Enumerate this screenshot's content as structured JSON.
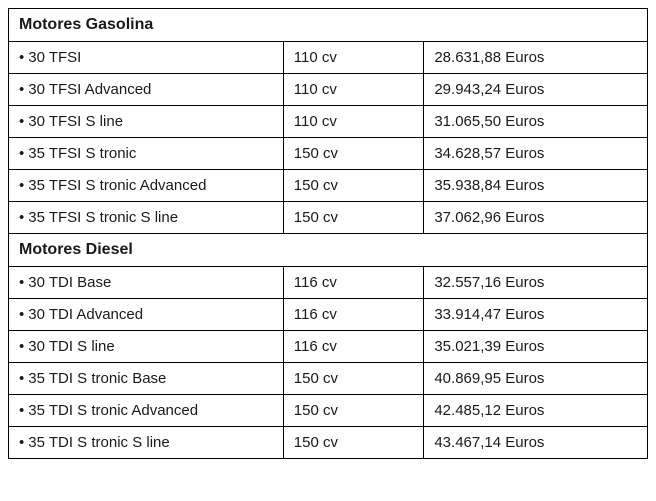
{
  "table": {
    "border_color": "#000000",
    "background_color": "#ffffff",
    "text_color": "#1a1a1a",
    "font_family": "Arial",
    "header_fontsize": 16,
    "row_fontsize": 15,
    "columns": [
      "model",
      "power",
      "price"
    ],
    "column_widths_pct": [
      43,
      22,
      35
    ],
    "bullet_char": "•",
    "sections": [
      {
        "title": "Motores Gasolina",
        "rows": [
          {
            "model": "30 TFSI",
            "power": "110 cv",
            "price": "28.631,88 Euros"
          },
          {
            "model": "30 TFSI Advanced",
            "power": "110 cv",
            "price": "29.943,24 Euros"
          },
          {
            "model": "30 TFSI S line",
            "power": "110 cv",
            "price": "31.065,50 Euros"
          },
          {
            "model": "35 TFSI S tronic",
            "power": "150 cv",
            "price": "34.628,57 Euros"
          },
          {
            "model": "35 TFSI S tronic Advanced",
            "power": "150 cv",
            "price": "35.938,84 Euros"
          },
          {
            "model": "35 TFSI S tronic S line",
            "power": "150 cv",
            "price": "37.062,96 Euros"
          }
        ]
      },
      {
        "title": "Motores Diesel",
        "rows": [
          {
            "model": "30 TDI Base",
            "power": "116 cv",
            "price": "32.557,16 Euros"
          },
          {
            "model": "30 TDI Advanced",
            "power": "116 cv",
            "price": "33.914,47 Euros"
          },
          {
            "model": "30 TDI S line",
            "power": "116 cv",
            "price": "35.021,39 Euros"
          },
          {
            "model": "35 TDI S tronic Base",
            "power": "150 cv",
            "price": "40.869,95 Euros"
          },
          {
            "model": "35 TDI S tronic Advanced",
            "power": "150 cv",
            "price": "42.485,12 Euros"
          },
          {
            "model": "35 TDI S tronic S line",
            "power": "150 cv",
            "price": "43.467,14 Euros"
          }
        ]
      }
    ]
  }
}
